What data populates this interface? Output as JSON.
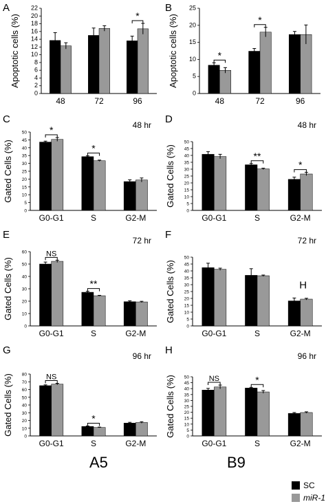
{
  "column_labels": {
    "left": "A5",
    "right": "B9"
  },
  "legend": {
    "items": [
      {
        "label": "SC",
        "color": "#000000"
      },
      {
        "label": "miR-1",
        "color": "#999999"
      }
    ]
  },
  "colors": {
    "sc": "#000000",
    "mir1": "#999999"
  },
  "chart_data": [
    {
      "panel": "A",
      "type": "bar",
      "ylabel": "Apoptotic cells (%)",
      "time": "",
      "ylim": [
        0,
        22
      ],
      "yticks": [
        0,
        2,
        4,
        6,
        8,
        10,
        12,
        14,
        16,
        18,
        20,
        22
      ],
      "categories": [
        "48",
        "72",
        "96"
      ],
      "series": [
        {
          "name": "SC",
          "values": [
            13.7,
            15.0,
            13.6
          ],
          "errors": [
            2.0,
            1.9,
            1.2
          ]
        },
        {
          "name": "miR-1",
          "values": [
            12.3,
            16.8,
            16.7
          ],
          "errors": [
            0.8,
            0.7,
            1.4
          ]
        }
      ],
      "annotations": [
        {
          "category": 2,
          "text": "*"
        }
      ]
    },
    {
      "panel": "B",
      "type": "bar",
      "ylabel": "Apoptotic cells (%)",
      "time": "",
      "ylim": [
        0,
        25
      ],
      "yticks": [
        0,
        5,
        10,
        15,
        20,
        25
      ],
      "categories": [
        "48",
        "72",
        "96"
      ],
      "series": [
        {
          "name": "SC",
          "values": [
            8.3,
            12.4,
            17.3
          ],
          "errors": [
            0.7,
            0.8,
            0.9
          ]
        },
        {
          "name": "miR-1",
          "values": [
            6.8,
            18.0,
            17.3
          ],
          "errors": [
            0.8,
            1.4,
            2.8
          ]
        }
      ],
      "annotations": [
        {
          "category": 0,
          "text": "*"
        },
        {
          "category": 1,
          "text": "*"
        }
      ]
    },
    {
      "panel": "C",
      "type": "bar",
      "ylabel": "Gated Cells (%)",
      "time": "48 hr",
      "ylim": [
        0,
        50
      ],
      "yticks": [
        0,
        5,
        10,
        15,
        20,
        25,
        30,
        35,
        40,
        45,
        50
      ],
      "categories": [
        "G0-G1",
        "S",
        "G2-M"
      ],
      "series": [
        {
          "name": "SC",
          "values": [
            43.6,
            34.3,
            18.4
          ],
          "errors": [
            0.6,
            0.5,
            1.1
          ]
        },
        {
          "name": "miR-1",
          "values": [
            45.3,
            31.7,
            19.4
          ],
          "errors": [
            1.2,
            0.4,
            1.3
          ]
        }
      ],
      "annotations": [
        {
          "category": 0,
          "text": "*"
        },
        {
          "category": 1,
          "text": "*"
        }
      ]
    },
    {
      "panel": "D",
      "type": "bar",
      "ylabel": "Gated Cells (%)",
      "time": "48 hr",
      "ylim": [
        0,
        50
      ],
      "yticks": [
        0,
        5,
        10,
        15,
        20,
        25,
        30,
        35,
        40,
        45,
        50
      ],
      "categories": [
        "G0-G1",
        "S",
        "G2-M"
      ],
      "series": [
        {
          "name": "SC",
          "values": [
            40.8,
            33.2,
            22.6
          ],
          "errors": [
            1.9,
            0.9,
            1.6
          ]
        },
        {
          "name": "miR-1",
          "values": [
            39.2,
            30.2,
            26.5
          ],
          "errors": [
            1.6,
            0.5,
            1.2
          ]
        }
      ],
      "annotations": [
        {
          "category": 1,
          "text": "**"
        },
        {
          "category": 2,
          "text": "*"
        }
      ]
    },
    {
      "panel": "E",
      "type": "bar",
      "ylabel": "Gated Cells (%)",
      "time": "72 hr",
      "ylim": [
        0,
        60
      ],
      "yticks": [
        0,
        10,
        20,
        30,
        40,
        50,
        60
      ],
      "categories": [
        "G0-G1",
        "S",
        "G2-M"
      ],
      "series": [
        {
          "name": "SC",
          "values": [
            50.0,
            27.2,
            19.6
          ],
          "errors": [
            1.6,
            0.8,
            0.7
          ]
        },
        {
          "name": "miR-1",
          "values": [
            52.2,
            24.4,
            19.4
          ],
          "errors": [
            0.9,
            0.3,
            0.5
          ]
        }
      ],
      "annotations": [
        {
          "category": 0,
          "text": "NS"
        },
        {
          "category": 1,
          "text": "**"
        }
      ]
    },
    {
      "panel": "F",
      "type": "bar",
      "ylabel": "Gated Cells (%)",
      "time": "72 hr",
      "ylim": [
        0,
        50
      ],
      "yticks": [
        0,
        5,
        10,
        15,
        20,
        25,
        30,
        35,
        40,
        45,
        50
      ],
      "categories": [
        "G0-G1",
        "S",
        "G2-M"
      ],
      "series": [
        {
          "name": "SC",
          "values": [
            42.4,
            36.8,
            18.2
          ],
          "errors": [
            3.2,
            4.8,
            2.1
          ]
        },
        {
          "name": "miR-1",
          "values": [
            41.2,
            36.5,
            19.5
          ],
          "errors": [
            0.8,
            0.5,
            0.6
          ]
        }
      ],
      "annotations": [
        {
          "category": 2,
          "text": "H",
          "style": "plain"
        }
      ]
    },
    {
      "panel": "G",
      "type": "bar",
      "ylabel": "Gated Cells (%)",
      "time": "96 hr",
      "ylim": [
        0,
        80
      ],
      "yticks": [
        0,
        10,
        20,
        30,
        40,
        50,
        60,
        70,
        80
      ],
      "categories": [
        "G0-G1",
        "S",
        "G2-M"
      ],
      "series": [
        {
          "name": "SC",
          "values": [
            65.0,
            12.3,
            16.6
          ],
          "errors": [
            1.0,
            0.6,
            1.0
          ]
        },
        {
          "name": "miR-1",
          "values": [
            67.0,
            11.0,
            17.4
          ],
          "errors": [
            1.0,
            0.4,
            1.0
          ]
        }
      ],
      "annotations": [
        {
          "category": 0,
          "text": "NS"
        },
        {
          "category": 1,
          "text": "*"
        }
      ]
    },
    {
      "panel": "H",
      "type": "bar",
      "ylabel": "Gated Cells (%)",
      "time": "96 hr",
      "ylim": [
        0,
        50
      ],
      "yticks": [
        0,
        5,
        10,
        15,
        20,
        25,
        30,
        35,
        40,
        45,
        50
      ],
      "categories": [
        "G0-G1",
        "S",
        "G2-M"
      ],
      "series": [
        {
          "name": "SC",
          "values": [
            38.8,
            40.5,
            19.1
          ],
          "errors": [
            1.4,
            0.6,
            0.7
          ]
        },
        {
          "name": "miR-1",
          "values": [
            41.4,
            37.2,
            19.8
          ],
          "errors": [
            1.6,
            1.2,
            0.6
          ]
        }
      ],
      "annotations": [
        {
          "category": 0,
          "text": "NS"
        },
        {
          "category": 1,
          "text": "*"
        }
      ]
    }
  ]
}
